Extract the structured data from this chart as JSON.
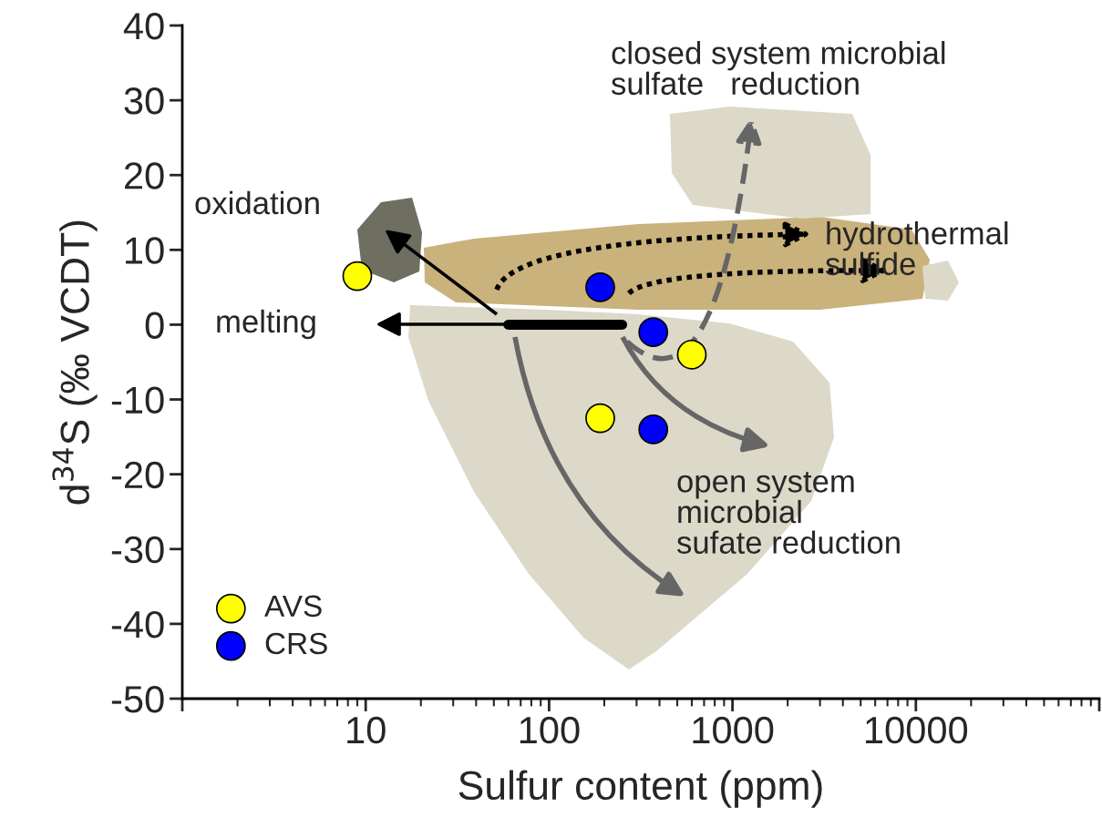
{
  "chart_data": {
    "type": "scatter",
    "xlabel": "Sulfur content (ppm)",
    "ylabel": "d$^{34}$S (‰ VCDT)",
    "log": "x",
    "xlim": [
      1,
      100000
    ],
    "ylim": [
      -50,
      40
    ],
    "xticks": [
      {
        "value": 1,
        "label": null
      },
      10,
      100,
      1000,
      10000,
      {
        "value": 100000,
        "label": null
      }
    ],
    "yticks": [
      -50,
      -40,
      -30,
      -20,
      -10,
      0,
      10,
      20,
      30,
      40
    ],
    "grid": false,
    "legend": "bottom left",
    "series": [
      {
        "name": "AVS",
        "color": "#ffff00",
        "marker": "circle",
        "x": [
          9,
          190,
          600
        ],
        "values": [
          6.5,
          -12.5,
          -4
        ]
      },
      {
        "name": "CRS",
        "color": "#0000ff",
        "marker": "circle",
        "x": [
          190,
          370,
          370
        ],
        "values": [
          5,
          -1,
          -14
        ]
      },
      {
        "type": "line",
        "color": "#000000",
        "x": [
          60,
          250
        ],
        "values": [
          0,
          0
        ]
      }
    ],
    "annotations": [
      "closed system microbial\nsulfate   reduction",
      "oxidation",
      "hydrothermal\nsulfide",
      "melting",
      "open system\nmicrobial\nsufate reduction"
    ]
  }
}
